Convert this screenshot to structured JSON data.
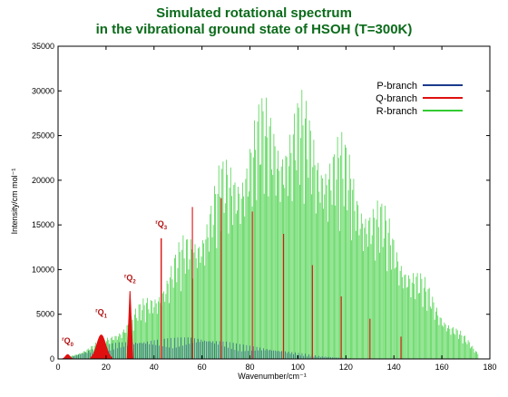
{
  "chart_data": {
    "type": "line",
    "title_line1": "Simulated rotational spectrum",
    "title_line2": "in the vibrational ground state  of HSOH (T=300K)",
    "xlabel": "Wavenumber/cm⁻¹",
    "ylabel": "Intensity/cm mol⁻¹",
    "xlim": [
      0,
      180
    ],
    "ylim": [
      0,
      35000
    ],
    "x_ticks": [
      0,
      20,
      40,
      60,
      80,
      100,
      120,
      140,
      160,
      180
    ],
    "y_ticks": [
      0,
      5000,
      10000,
      15000,
      20000,
      25000,
      30000,
      35000
    ],
    "legend_position": "top-right",
    "series": [
      {
        "name": "P-branch",
        "color": "#1a3a8c",
        "x": [
          5,
          10,
          15,
          20,
          25,
          30,
          35,
          40,
          45,
          50,
          55,
          60,
          65,
          70,
          75,
          80,
          85,
          90,
          95,
          100,
          105,
          110,
          120
        ],
        "envelope": [
          200,
          700,
          1200,
          1600,
          1900,
          2000,
          2100,
          2200,
          2300,
          2400,
          2500,
          2400,
          2200,
          2000,
          1700,
          1500,
          1300,
          1100,
          900,
          700,
          500,
          300,
          100
        ]
      },
      {
        "name": "Q-branch",
        "color": "#e01010",
        "x": [
          4,
          18,
          30,
          43,
          56,
          68,
          81,
          94,
          106,
          118,
          130,
          143
        ],
        "values": [
          500,
          2700,
          7600,
          13500,
          17000,
          18000,
          16500,
          14000,
          10500,
          7000,
          4500,
          2500
        ]
      },
      {
        "name": "R-branch",
        "color": "#33cc33",
        "x": [
          10,
          20,
          30,
          40,
          50,
          60,
          70,
          80,
          90,
          100,
          110,
          120,
          130,
          140,
          150,
          160,
          170,
          175
        ],
        "envelope": [
          1000,
          2500,
          5000,
          8500,
          13000,
          18000,
          23500,
          28500,
          31000,
          30500,
          28500,
          25000,
          20500,
          15500,
          10500,
          6000,
          2500,
          800
        ]
      }
    ],
    "annotations": [
      {
        "label_main": "Q",
        "label_sup": "r",
        "label_sub": "0",
        "x": 4,
        "y": 1700
      },
      {
        "label_main": "Q",
        "label_sup": "r",
        "label_sub": "1",
        "x": 18,
        "y": 4900
      },
      {
        "label_main": "Q",
        "label_sup": "r",
        "label_sub": "2",
        "x": 30,
        "y": 8800
      },
      {
        "label_main": "Q",
        "label_sup": "r",
        "label_sub": "3",
        "x": 43,
        "y": 14800
      }
    ]
  }
}
